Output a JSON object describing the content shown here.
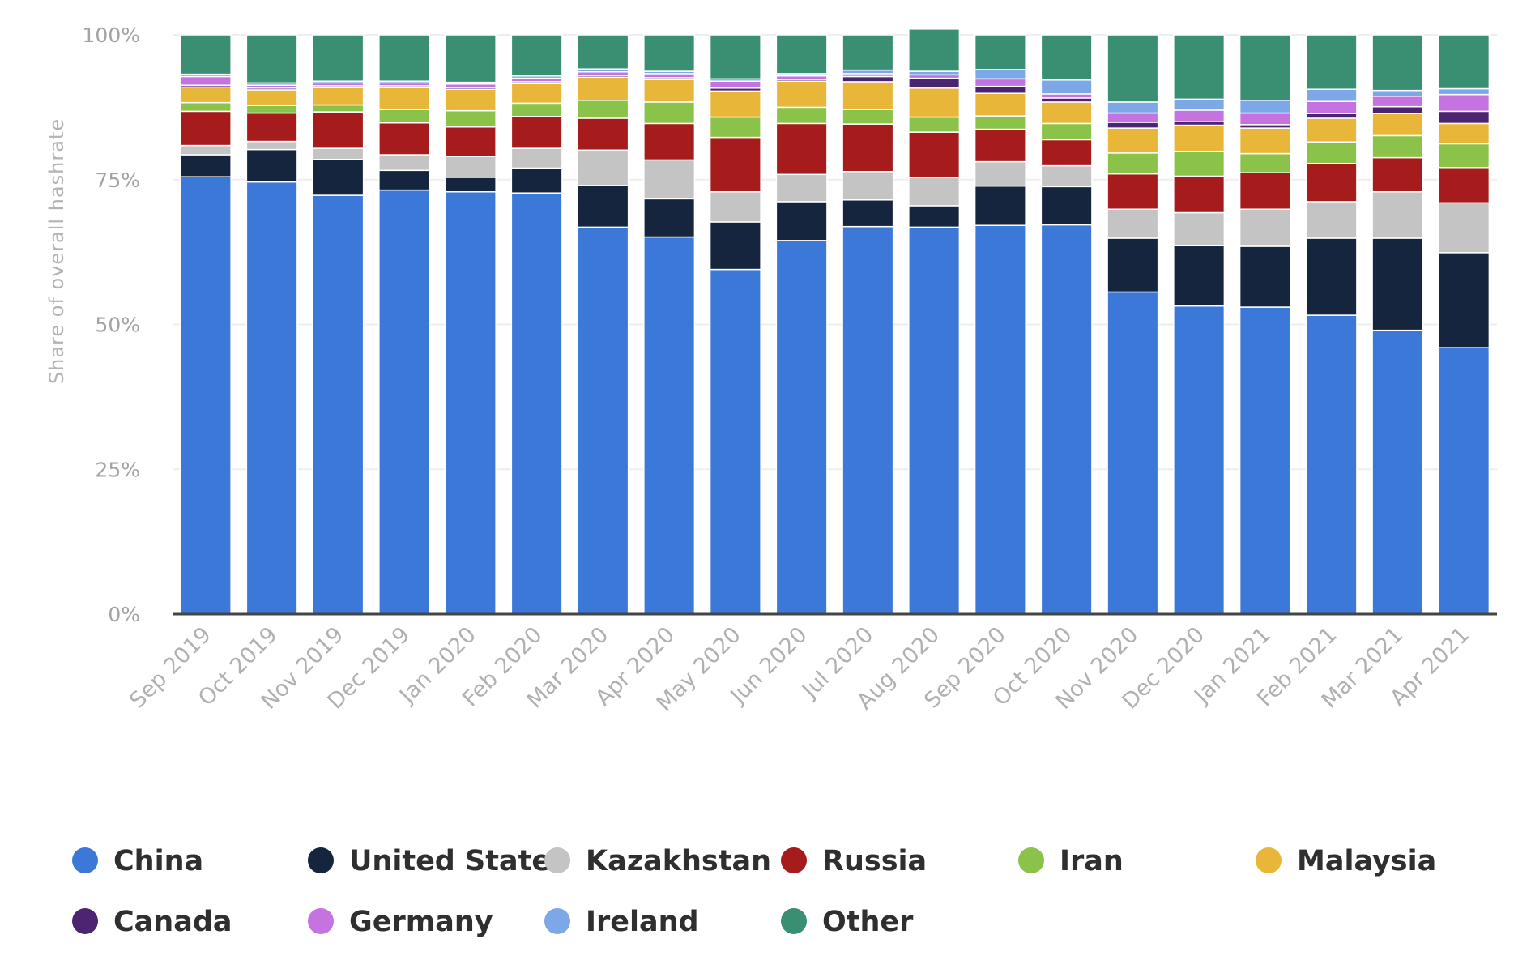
{
  "chart_data": {
    "type": "bar",
    "stacked": true,
    "title": "",
    "xlabel": "",
    "ylabel": "Share of overall hashrate",
    "ylim": [
      0,
      100
    ],
    "yticks": [
      "0%",
      "25%",
      "50%",
      "75%",
      "100%"
    ],
    "categories": [
      "Sep 2019",
      "Oct 2019",
      "Nov 2019",
      "Dec 2019",
      "Jan 2020",
      "Feb 2020",
      "Mar 2020",
      "Apr 2020",
      "May 2020",
      "Jun 2020",
      "Jul 2020",
      "Aug 2020",
      "Sep 2020",
      "Oct 2020",
      "Nov 2020",
      "Dec 2020",
      "Jan 2021",
      "Feb 2021",
      "Mar 2021",
      "Apr 2021"
    ],
    "legend_position": "bottom",
    "series": [
      {
        "name": "China",
        "color": "#3c78d8",
        "values": [
          75.5,
          74.6,
          72.3,
          73.2,
          72.9,
          72.7,
          66.8,
          65.1,
          59.5,
          64.5,
          66.9,
          66.8,
          67.1,
          67.2,
          55.6,
          53.2,
          53.0,
          51.6,
          49.0,
          46.0
        ]
      },
      {
        "name": "United States",
        "color": "#14253d",
        "values": [
          3.8,
          5.6,
          6.2,
          3.4,
          2.5,
          4.3,
          7.2,
          6.6,
          8.2,
          6.7,
          4.6,
          3.7,
          6.8,
          6.6,
          9.3,
          10.4,
          10.5,
          13.3,
          15.9,
          16.4
        ]
      },
      {
        "name": "Kazakhstan",
        "color": "#c4c4c4",
        "values": [
          1.6,
          1.4,
          1.9,
          2.7,
          3.6,
          3.4,
          6.1,
          6.7,
          5.2,
          4.7,
          4.9,
          4.9,
          4.2,
          3.6,
          5.0,
          5.7,
          6.4,
          6.3,
          8.0,
          8.6
        ]
      },
      {
        "name": "Russia",
        "color": "#a61c1c",
        "values": [
          5.9,
          4.9,
          6.3,
          5.5,
          5.1,
          5.5,
          5.5,
          6.3,
          9.4,
          8.8,
          8.2,
          7.8,
          5.6,
          4.5,
          6.1,
          6.3,
          6.3,
          6.6,
          5.9,
          6.1
        ]
      },
      {
        "name": "Iran",
        "color": "#8bc34a",
        "values": [
          1.5,
          1.3,
          1.2,
          2.3,
          2.8,
          2.3,
          3.1,
          3.7,
          3.5,
          2.8,
          2.5,
          2.6,
          2.3,
          2.8,
          3.6,
          4.3,
          3.3,
          3.7,
          3.8,
          4.1
        ]
      },
      {
        "name": "Malaysia",
        "color": "#e8b739",
        "values": [
          2.7,
          2.7,
          3.0,
          3.8,
          3.7,
          3.4,
          4.0,
          3.9,
          4.5,
          4.5,
          4.8,
          5.0,
          3.9,
          3.7,
          4.3,
          4.5,
          4.4,
          4.1,
          3.8,
          3.5
        ]
      },
      {
        "name": "Canada",
        "color": "#4b2472",
        "values": [
          0.3,
          0.3,
          0.3,
          0.3,
          0.3,
          0.3,
          0.3,
          0.3,
          0.5,
          0.3,
          0.9,
          1.7,
          1.2,
          0.7,
          1.0,
          0.6,
          0.6,
          0.8,
          1.2,
          2.1
        ]
      },
      {
        "name": "Germany",
        "color": "#c473e0",
        "values": [
          1.5,
          0.5,
          0.5,
          0.5,
          0.6,
          0.6,
          0.6,
          0.7,
          1.2,
          0.6,
          0.5,
          0.6,
          1.3,
          0.7,
          1.6,
          2.0,
          2.0,
          2.1,
          1.8,
          2.9
        ]
      },
      {
        "name": "Ireland",
        "color": "#7ea7e8",
        "values": [
          0.4,
          0.4,
          0.3,
          0.3,
          0.3,
          0.4,
          0.5,
          0.4,
          0.4,
          0.4,
          0.6,
          0.6,
          1.6,
          2.4,
          1.9,
          1.9,
          2.2,
          2.1,
          1.0,
          1.0
        ]
      },
      {
        "name": "Other",
        "color": "#3a8f73",
        "values": [
          6.8,
          8.3,
          8.0,
          8.0,
          8.2,
          7.1,
          5.9,
          6.3,
          7.6,
          6.7,
          6.1,
          7.3,
          6.0,
          7.8,
          11.6,
          11.1,
          11.3,
          9.4,
          9.6,
          9.3
        ]
      }
    ]
  }
}
